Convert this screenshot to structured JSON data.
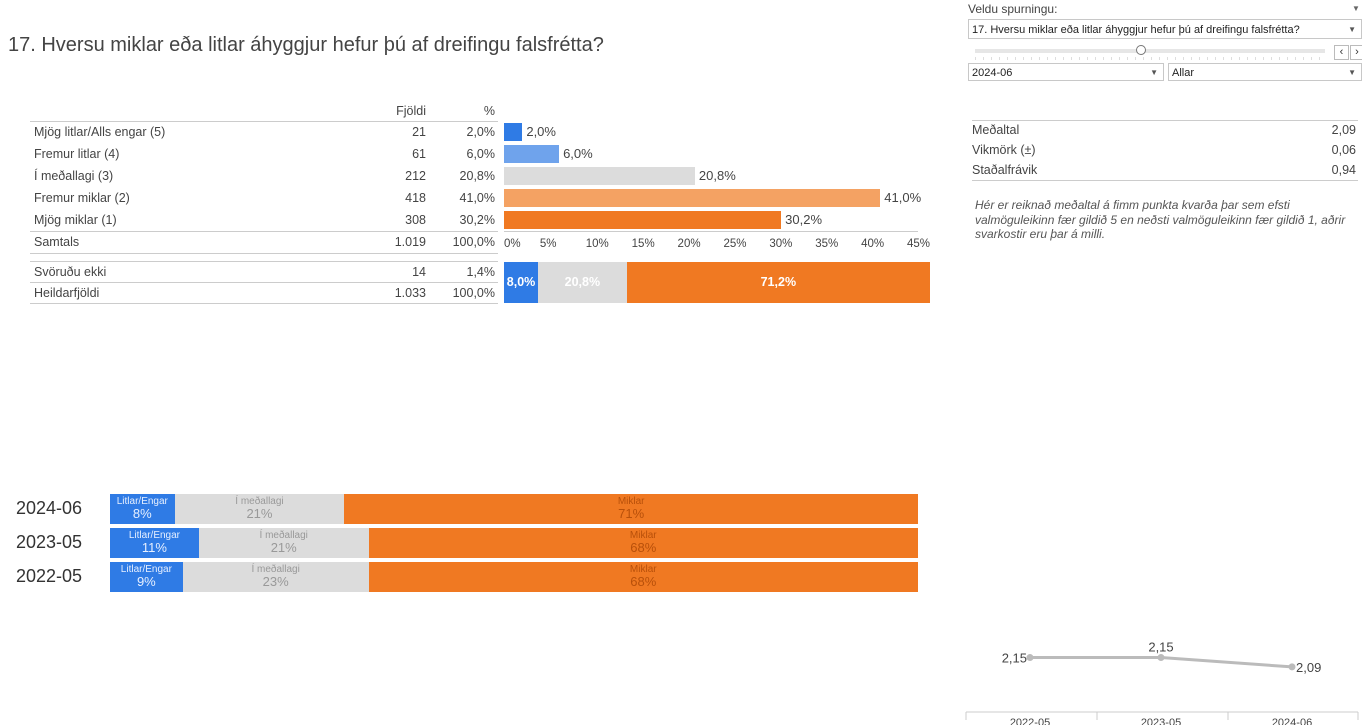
{
  "title": "17. Hversu miklar eða litlar áhyggjur hefur þú af dreifingu falsfrétta?",
  "controls": {
    "question_label": "Veldu spurningu:",
    "question_value": "17. Hversu miklar eða litlar áhyggjur hefur þú af dreifingu falsfrétta?",
    "slider_position_fraction": 0.23,
    "date_value": "2024-06",
    "group_value": "Allar",
    "prev_icon": "chevron-left",
    "next_icon": "chevron-right"
  },
  "table": {
    "headers": {
      "count": "Fjöldi",
      "pct": "%"
    },
    "rows": [
      {
        "label": "Mjög litlar/Alls engar (5)",
        "count": "21",
        "pct": "2,0%",
        "value": 2.0,
        "color": "#2f7be5"
      },
      {
        "label": "Fremur litlar (4)",
        "count": "61",
        "pct": "6,0%",
        "value": 6.0,
        "color": "#6fa3ec"
      },
      {
        "label": "Í meðallagi (3)",
        "count": "212",
        "pct": "20,8%",
        "value": 20.8,
        "color": "#dcdcdc"
      },
      {
        "label": "Fremur miklar (2)",
        "count": "418",
        "pct": "41,0%",
        "value": 41.0,
        "color": "#f4a263"
      },
      {
        "label": "Mjög miklar (1)",
        "count": "308",
        "pct": "30,2%",
        "value": 30.2,
        "color": "#f07922"
      }
    ],
    "total": {
      "label": "Samtals",
      "count": "1.019",
      "pct": "100,0%"
    },
    "no_answer": {
      "label": "Svöruðu ekki",
      "count": "14",
      "pct": "1,4%"
    },
    "grand_total": {
      "label": "Heildarfjöldi",
      "count": "1.033",
      "pct": "100,0%"
    }
  },
  "chart_data": [
    {
      "type": "bar",
      "orientation": "horizontal",
      "categories": [
        "Mjög litlar/Alls engar (5)",
        "Fremur litlar (4)",
        "Í meðallagi (3)",
        "Fremur miklar (2)",
        "Mjög miklar (1)"
      ],
      "values": [
        2.0,
        6.0,
        20.8,
        41.0,
        30.2
      ],
      "data_labels": [
        "2,0%",
        "6,0%",
        "20,8%",
        "41,0%",
        "30,2%"
      ],
      "xlim": [
        0,
        45
      ],
      "xticks": [
        "0%",
        "5%",
        "10%",
        "15%",
        "20%",
        "25%",
        "30%",
        "35%",
        "40%",
        "45%"
      ]
    },
    {
      "type": "bar",
      "stacked": true,
      "values": [
        8.0,
        20.8,
        71.2
      ],
      "data_labels": [
        "8,0%",
        "20,8%",
        "71,2%"
      ],
      "colors": [
        "#2f7be5",
        "#dcdcdc",
        "#f07922"
      ]
    },
    {
      "type": "bar",
      "stacked": true,
      "categories": [
        "2024-06",
        "2023-05",
        "2022-05"
      ],
      "segments": [
        "Litlar/Engar",
        "Í meðallagi",
        "Miklar"
      ],
      "series": [
        {
          "name": "Litlar/Engar",
          "values": [
            8,
            11,
            9
          ],
          "labels": [
            "8%",
            "11%",
            "9%"
          ],
          "color": "#2f7be5"
        },
        {
          "name": "Í meðallagi",
          "values": [
            21,
            21,
            23
          ],
          "labels": [
            "21%",
            "21%",
            "23%"
          ],
          "color": "#dcdcdc"
        },
        {
          "name": "Miklar",
          "values": [
            71,
            68,
            68
          ],
          "labels": [
            "71%",
            "68%",
            "68%"
          ],
          "color": "#f07922"
        }
      ]
    },
    {
      "type": "line",
      "x": [
        "2022-05",
        "2023-05",
        "2024-06"
      ],
      "y": [
        2.15,
        2.15,
        2.09
      ],
      "labels": [
        "2,15",
        "2,15",
        "2,09"
      ],
      "ylim": [
        1.8,
        2.25
      ],
      "color": "#bbbbbb"
    }
  ],
  "stats": [
    {
      "label": "Meðaltal",
      "value": "2,09"
    },
    {
      "label": "Vikmörk (±)",
      "value": "0,06"
    },
    {
      "label": "Staðalfrávik",
      "value": "0,94"
    }
  ],
  "note": "Hér er reiknað meðaltal á fimm punkta kvarða þar sem efsti valmöguleikinn fær gildið 5 en neðsti valmöguleikinn fær gildið 1, aðrir svarkostir eru þar á milli."
}
